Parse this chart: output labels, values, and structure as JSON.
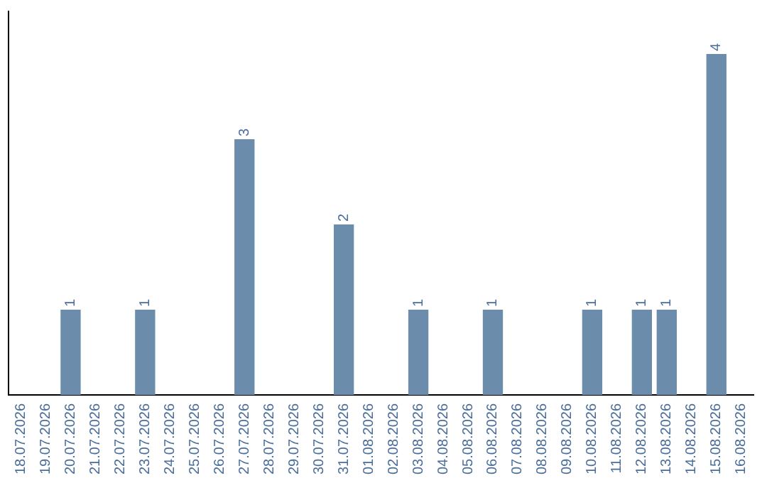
{
  "chart_data": {
    "type": "bar",
    "categories": [
      "18.07.2026",
      "19.07.2026",
      "20.07.2026",
      "21.07.2026",
      "22.07.2026",
      "23.07.2026",
      "24.07.2026",
      "25.07.2026",
      "26.07.2026",
      "27.07.2026",
      "28.07.2026",
      "29.07.2026",
      "30.07.2026",
      "31.07.2026",
      "01.08.2026",
      "02.08.2026",
      "03.08.2026",
      "04.08.2026",
      "05.08.2026",
      "06.08.2026",
      "07.08.2026",
      "08.08.2026",
      "09.08.2026",
      "10.08.2026",
      "11.08.2026",
      "12.08.2026",
      "13.08.2026",
      "14.08.2026",
      "15.08.2026",
      "16.08.2026"
    ],
    "values": [
      null,
      null,
      1,
      null,
      null,
      1,
      null,
      null,
      null,
      3,
      null,
      null,
      null,
      2,
      null,
      null,
      1,
      null,
      null,
      1,
      null,
      null,
      null,
      1,
      null,
      1,
      1,
      null,
      4,
      null
    ],
    "color": "#6b8cab",
    "data_labels": true,
    "grid": false,
    "legend": false,
    "tick_labels": "x"
  }
}
